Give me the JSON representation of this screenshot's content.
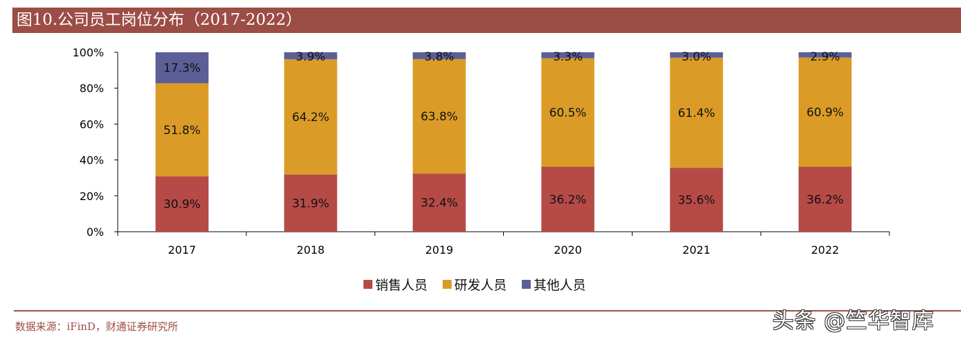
{
  "title": "图10.公司员工岗位分布（2017-2022）",
  "source": "数据来源：iFinD，财通证券研究所",
  "watermark": "头条 @竺华智库",
  "chart_data": {
    "type": "bar",
    "stacked": true,
    "percent": true,
    "title": "图10.公司员工岗位分布（2017-2022）",
    "xlabel": "",
    "ylabel": "",
    "ylim": [
      0,
      100
    ],
    "yticks": [
      "0%",
      "20%",
      "40%",
      "60%",
      "80%",
      "100%"
    ],
    "categories": [
      "2017",
      "2018",
      "2019",
      "2020",
      "2021",
      "2022"
    ],
    "series": [
      {
        "name": "销售人员",
        "color": "#b54a46",
        "values": [
          30.9,
          31.9,
          32.4,
          36.2,
          35.6,
          36.2
        ],
        "labels": [
          "30.9%",
          "31.9%",
          "32.4%",
          "36.2%",
          "35.6%",
          "36.2%"
        ]
      },
      {
        "name": "研发人员",
        "color": "#da9b27",
        "values": [
          51.8,
          64.2,
          63.8,
          60.5,
          61.4,
          60.9
        ],
        "labels": [
          "51.8%",
          "64.2%",
          "63.8%",
          "60.5%",
          "61.4%",
          "60.9%"
        ]
      },
      {
        "name": "其他人员",
        "color": "#5b5e97",
        "values": [
          17.3,
          3.9,
          3.8,
          3.3,
          3.0,
          2.9
        ],
        "labels": [
          "17.3%",
          "3.9%",
          "3.8%",
          "3.3%",
          "3.0%",
          "2.9%"
        ]
      }
    ],
    "legend": {
      "position": "bottom",
      "items": [
        "销售人员",
        "研发人员",
        "其他人员"
      ]
    },
    "grid": false
  }
}
